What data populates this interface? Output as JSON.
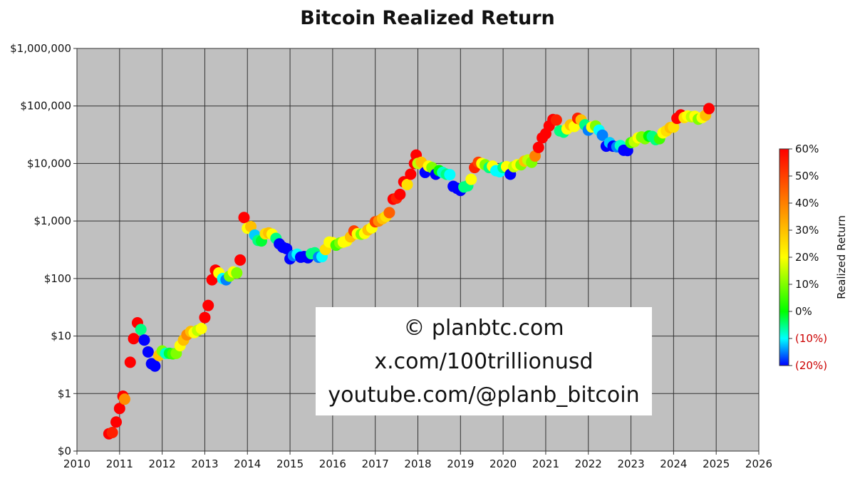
{
  "chart_data": {
    "type": "scatter",
    "title": "Bitcoin Realized Return",
    "xlabel": "",
    "ylabel": "",
    "x_range": [
      2010,
      2026
    ],
    "x_ticks": [
      "2010",
      "2011",
      "2012",
      "2013",
      "2014",
      "2015",
      "2016",
      "2017",
      "2018",
      "2019",
      "2020",
      "2021",
      "2022",
      "2023",
      "2024",
      "2025",
      "2026"
    ],
    "y_scale": "log",
    "y_range": [
      0.1,
      1000000
    ],
    "y_ticks": [
      {
        "value": 0.1,
        "label": "$0"
      },
      {
        "value": 1,
        "label": "$1"
      },
      {
        "value": 10,
        "label": "$10"
      },
      {
        "value": 100,
        "label": "$100"
      },
      {
        "value": 1000,
        "label": "$1,000"
      },
      {
        "value": 10000,
        "label": "$10,000"
      },
      {
        "value": 100000,
        "label": "$100,000"
      },
      {
        "value": 1000000,
        "label": "$1,000,000"
      }
    ],
    "grid": true,
    "background": "#c0c0c0",
    "colorbar": {
      "label": "Realized Return",
      "range": [
        -20,
        60
      ],
      "ticks": [
        {
          "value": 60,
          "label": "60%",
          "color": "#111111"
        },
        {
          "value": 50,
          "label": "50%",
          "color": "#111111"
        },
        {
          "value": 40,
          "label": "40%",
          "color": "#111111"
        },
        {
          "value": 30,
          "label": "30%",
          "color": "#111111"
        },
        {
          "value": 20,
          "label": "20%",
          "color": "#111111"
        },
        {
          "value": 10,
          "label": "10%",
          "color": "#111111"
        },
        {
          "value": 0,
          "label": "0%",
          "color": "#111111"
        },
        {
          "value": -10,
          "label": "(10%)",
          "color": "#cc0000"
        },
        {
          "value": -20,
          "label": "(20%)",
          "color": "#cc0000"
        }
      ]
    },
    "points": [
      {
        "x": 2010.75,
        "y": 0.2,
        "r": 60
      },
      {
        "x": 2010.83,
        "y": 0.21,
        "r": 55
      },
      {
        "x": 2010.92,
        "y": 0.32,
        "r": 60
      },
      {
        "x": 2011.0,
        "y": 0.55,
        "r": 60
      },
      {
        "x": 2011.08,
        "y": 0.9,
        "r": 60
      },
      {
        "x": 2011.12,
        "y": 0.8,
        "r": 38
      },
      {
        "x": 2011.25,
        "y": 3.5,
        "r": 60
      },
      {
        "x": 2011.33,
        "y": 9,
        "r": 60
      },
      {
        "x": 2011.42,
        "y": 17,
        "r": 60
      },
      {
        "x": 2011.5,
        "y": 13,
        "r": -5
      },
      {
        "x": 2011.58,
        "y": 8.5,
        "r": -20
      },
      {
        "x": 2011.67,
        "y": 5.3,
        "r": -20
      },
      {
        "x": 2011.75,
        "y": 3.3,
        "r": -20
      },
      {
        "x": 2011.83,
        "y": 3,
        "r": -20
      },
      {
        "x": 2011.92,
        "y": 4.6,
        "r": 30
      },
      {
        "x": 2012.0,
        "y": 5.5,
        "r": 10
      },
      {
        "x": 2012.08,
        "y": 5,
        "r": -8
      },
      {
        "x": 2012.17,
        "y": 5,
        "r": -2
      },
      {
        "x": 2012.25,
        "y": 4.9,
        "r": 5
      },
      {
        "x": 2012.33,
        "y": 5,
        "r": 10
      },
      {
        "x": 2012.42,
        "y": 6.8,
        "r": 20
      },
      {
        "x": 2012.5,
        "y": 8.5,
        "r": 30
      },
      {
        "x": 2012.58,
        "y": 10.5,
        "r": 38
      },
      {
        "x": 2012.67,
        "y": 12,
        "r": 30
      },
      {
        "x": 2012.75,
        "y": 11.5,
        "r": 20
      },
      {
        "x": 2012.83,
        "y": 12.5,
        "r": 15
      },
      {
        "x": 2012.92,
        "y": 13.5,
        "r": 20
      },
      {
        "x": 2013.0,
        "y": 21,
        "r": 60
      },
      {
        "x": 2013.08,
        "y": 34,
        "r": 60
      },
      {
        "x": 2013.17,
        "y": 95,
        "r": 60
      },
      {
        "x": 2013.25,
        "y": 140,
        "r": 60
      },
      {
        "x": 2013.33,
        "y": 125,
        "r": 20
      },
      {
        "x": 2013.42,
        "y": 100,
        "r": -10
      },
      {
        "x": 2013.5,
        "y": 95,
        "r": -15
      },
      {
        "x": 2013.58,
        "y": 110,
        "r": 10
      },
      {
        "x": 2013.67,
        "y": 130,
        "r": 20
      },
      {
        "x": 2013.75,
        "y": 125,
        "r": 10
      },
      {
        "x": 2013.83,
        "y": 210,
        "r": 60
      },
      {
        "x": 2013.92,
        "y": 1150,
        "r": 60
      },
      {
        "x": 2014.0,
        "y": 750,
        "r": 20
      },
      {
        "x": 2014.08,
        "y": 800,
        "r": 30
      },
      {
        "x": 2014.17,
        "y": 570,
        "r": -12
      },
      {
        "x": 2014.25,
        "y": 460,
        "r": -5
      },
      {
        "x": 2014.33,
        "y": 450,
        "r": -2
      },
      {
        "x": 2014.42,
        "y": 600,
        "r": 25
      },
      {
        "x": 2014.5,
        "y": 620,
        "r": 30
      },
      {
        "x": 2014.58,
        "y": 590,
        "r": 20
      },
      {
        "x": 2014.67,
        "y": 500,
        "r": -5
      },
      {
        "x": 2014.75,
        "y": 400,
        "r": -20
      },
      {
        "x": 2014.83,
        "y": 350,
        "r": -20
      },
      {
        "x": 2014.92,
        "y": 330,
        "r": -20
      },
      {
        "x": 2015.0,
        "y": 220,
        "r": -20
      },
      {
        "x": 2015.08,
        "y": 250,
        "r": -15
      },
      {
        "x": 2015.17,
        "y": 265,
        "r": -10
      },
      {
        "x": 2015.25,
        "y": 235,
        "r": -20
      },
      {
        "x": 2015.33,
        "y": 240,
        "r": -20
      },
      {
        "x": 2015.42,
        "y": 230,
        "r": -20
      },
      {
        "x": 2015.5,
        "y": 270,
        "r": -5
      },
      {
        "x": 2015.58,
        "y": 280,
        "r": -5
      },
      {
        "x": 2015.67,
        "y": 235,
        "r": -15
      },
      {
        "x": 2015.75,
        "y": 240,
        "r": -10
      },
      {
        "x": 2015.83,
        "y": 320,
        "r": 25
      },
      {
        "x": 2015.92,
        "y": 430,
        "r": 20
      },
      {
        "x": 2016.0,
        "y": 420,
        "r": 20
      },
      {
        "x": 2016.08,
        "y": 380,
        "r": 5
      },
      {
        "x": 2016.17,
        "y": 415,
        "r": 10
      },
      {
        "x": 2016.25,
        "y": 430,
        "r": 20
      },
      {
        "x": 2016.33,
        "y": 450,
        "r": 20
      },
      {
        "x": 2016.42,
        "y": 530,
        "r": 30
      },
      {
        "x": 2016.5,
        "y": 670,
        "r": 50
      },
      {
        "x": 2016.58,
        "y": 600,
        "r": 20
      },
      {
        "x": 2016.67,
        "y": 590,
        "r": 10
      },
      {
        "x": 2016.75,
        "y": 610,
        "r": 20
      },
      {
        "x": 2016.83,
        "y": 700,
        "r": 30
      },
      {
        "x": 2016.92,
        "y": 760,
        "r": 20
      },
      {
        "x": 2017.0,
        "y": 970,
        "r": 50
      },
      {
        "x": 2017.08,
        "y": 1000,
        "r": 38
      },
      {
        "x": 2017.17,
        "y": 1100,
        "r": 30
      },
      {
        "x": 2017.25,
        "y": 1200,
        "r": 25
      },
      {
        "x": 2017.33,
        "y": 1400,
        "r": 45
      },
      {
        "x": 2017.42,
        "y": 2400,
        "r": 60
      },
      {
        "x": 2017.5,
        "y": 2500,
        "r": 55
      },
      {
        "x": 2017.58,
        "y": 2900,
        "r": 60
      },
      {
        "x": 2017.67,
        "y": 4800,
        "r": 60
      },
      {
        "x": 2017.75,
        "y": 4300,
        "r": 25
      },
      {
        "x": 2017.83,
        "y": 6500,
        "r": 60
      },
      {
        "x": 2017.92,
        "y": 10000,
        "r": 60
      },
      {
        "x": 2017.96,
        "y": 14000,
        "r": 60
      },
      {
        "x": 2018.0,
        "y": 10000,
        "r": 15
      },
      {
        "x": 2018.08,
        "y": 10500,
        "r": 30
      },
      {
        "x": 2018.17,
        "y": 7000,
        "r": -20
      },
      {
        "x": 2018.25,
        "y": 9000,
        "r": 20
      },
      {
        "x": 2018.33,
        "y": 8500,
        "r": 10
      },
      {
        "x": 2018.42,
        "y": 6500,
        "r": -20
      },
      {
        "x": 2018.5,
        "y": 7500,
        "r": 0
      },
      {
        "x": 2018.58,
        "y": 7000,
        "r": -8
      },
      {
        "x": 2018.67,
        "y": 6500,
        "r": -5
      },
      {
        "x": 2018.75,
        "y": 6400,
        "r": -10
      },
      {
        "x": 2018.83,
        "y": 4000,
        "r": -20
      },
      {
        "x": 2018.92,
        "y": 3700,
        "r": -20
      },
      {
        "x": 2019.0,
        "y": 3400,
        "r": -20
      },
      {
        "x": 2019.08,
        "y": 3900,
        "r": -5
      },
      {
        "x": 2019.17,
        "y": 4100,
        "r": -5
      },
      {
        "x": 2019.25,
        "y": 5300,
        "r": 20
      },
      {
        "x": 2019.33,
        "y": 8500,
        "r": 55
      },
      {
        "x": 2019.42,
        "y": 10500,
        "r": 50
      },
      {
        "x": 2019.5,
        "y": 10000,
        "r": 20
      },
      {
        "x": 2019.58,
        "y": 9500,
        "r": 10
      },
      {
        "x": 2019.67,
        "y": 8500,
        "r": -5
      },
      {
        "x": 2019.75,
        "y": 9000,
        "r": 20
      },
      {
        "x": 2019.83,
        "y": 7500,
        "r": -10
      },
      {
        "x": 2019.92,
        "y": 7200,
        "r": -10
      },
      {
        "x": 2020.0,
        "y": 8500,
        "r": -5
      },
      {
        "x": 2020.08,
        "y": 8800,
        "r": 20
      },
      {
        "x": 2020.17,
        "y": 6500,
        "r": -20
      },
      {
        "x": 2020.25,
        "y": 8800,
        "r": 15
      },
      {
        "x": 2020.33,
        "y": 9500,
        "r": 20
      },
      {
        "x": 2020.42,
        "y": 9500,
        "r": 10
      },
      {
        "x": 2020.5,
        "y": 11000,
        "r": 30
      },
      {
        "x": 2020.58,
        "y": 11500,
        "r": 15
      },
      {
        "x": 2020.67,
        "y": 10500,
        "r": 10
      },
      {
        "x": 2020.75,
        "y": 13500,
        "r": 40
      },
      {
        "x": 2020.83,
        "y": 19000,
        "r": 60
      },
      {
        "x": 2020.92,
        "y": 28000,
        "r": 60
      },
      {
        "x": 2021.0,
        "y": 33000,
        "r": 60
      },
      {
        "x": 2021.08,
        "y": 45000,
        "r": 60
      },
      {
        "x": 2021.17,
        "y": 58000,
        "r": 60
      },
      {
        "x": 2021.25,
        "y": 57000,
        "r": 55
      },
      {
        "x": 2021.33,
        "y": 37000,
        "r": -5
      },
      {
        "x": 2021.42,
        "y": 35000,
        "r": -5
      },
      {
        "x": 2021.5,
        "y": 40000,
        "r": 20
      },
      {
        "x": 2021.58,
        "y": 47000,
        "r": 30
      },
      {
        "x": 2021.67,
        "y": 44000,
        "r": 20
      },
      {
        "x": 2021.75,
        "y": 61000,
        "r": 55
      },
      {
        "x": 2021.83,
        "y": 57000,
        "r": 30
      },
      {
        "x": 2021.92,
        "y": 47000,
        "r": -5
      },
      {
        "x": 2022.0,
        "y": 38000,
        "r": -15
      },
      {
        "x": 2022.08,
        "y": 43000,
        "r": 20
      },
      {
        "x": 2022.17,
        "y": 45000,
        "r": 10
      },
      {
        "x": 2022.25,
        "y": 38000,
        "r": -10
      },
      {
        "x": 2022.33,
        "y": 31000,
        "r": -15
      },
      {
        "x": 2022.42,
        "y": 20000,
        "r": -20
      },
      {
        "x": 2022.5,
        "y": 23000,
        "r": -12
      },
      {
        "x": 2022.58,
        "y": 20000,
        "r": -20
      },
      {
        "x": 2022.67,
        "y": 19500,
        "r": -15
      },
      {
        "x": 2022.75,
        "y": 20500,
        "r": -8
      },
      {
        "x": 2022.83,
        "y": 17000,
        "r": -20
      },
      {
        "x": 2022.92,
        "y": 16800,
        "r": -20
      },
      {
        "x": 2023.0,
        "y": 23000,
        "r": 5
      },
      {
        "x": 2023.08,
        "y": 24000,
        "r": 15
      },
      {
        "x": 2023.17,
        "y": 28000,
        "r": 20
      },
      {
        "x": 2023.25,
        "y": 29000,
        "r": 10
      },
      {
        "x": 2023.33,
        "y": 27000,
        "r": 10
      },
      {
        "x": 2023.42,
        "y": 30000,
        "r": 0
      },
      {
        "x": 2023.5,
        "y": 29500,
        "r": -5
      },
      {
        "x": 2023.58,
        "y": 26000,
        "r": -5
      },
      {
        "x": 2023.67,
        "y": 27000,
        "r": 5
      },
      {
        "x": 2023.75,
        "y": 34000,
        "r": 20
      },
      {
        "x": 2023.83,
        "y": 37000,
        "r": 25
      },
      {
        "x": 2023.92,
        "y": 42000,
        "r": 30
      },
      {
        "x": 2024.0,
        "y": 43000,
        "r": 25
      },
      {
        "x": 2024.08,
        "y": 61000,
        "r": 60
      },
      {
        "x": 2024.17,
        "y": 70000,
        "r": 60
      },
      {
        "x": 2024.25,
        "y": 63000,
        "r": 25
      },
      {
        "x": 2024.33,
        "y": 67000,
        "r": 20
      },
      {
        "x": 2024.42,
        "y": 65000,
        "r": 15
      },
      {
        "x": 2024.5,
        "y": 66000,
        "r": 20
      },
      {
        "x": 2024.58,
        "y": 59000,
        "r": 10
      },
      {
        "x": 2024.67,
        "y": 63000,
        "r": 20
      },
      {
        "x": 2024.75,
        "y": 69000,
        "r": 30
      },
      {
        "x": 2024.83,
        "y": 90000,
        "r": 60
      }
    ]
  },
  "watermark": {
    "line1": "© planbtc.com",
    "line2": "x.com/100trillionusd",
    "line3": "youtube.com/@planb_bitcoin"
  }
}
